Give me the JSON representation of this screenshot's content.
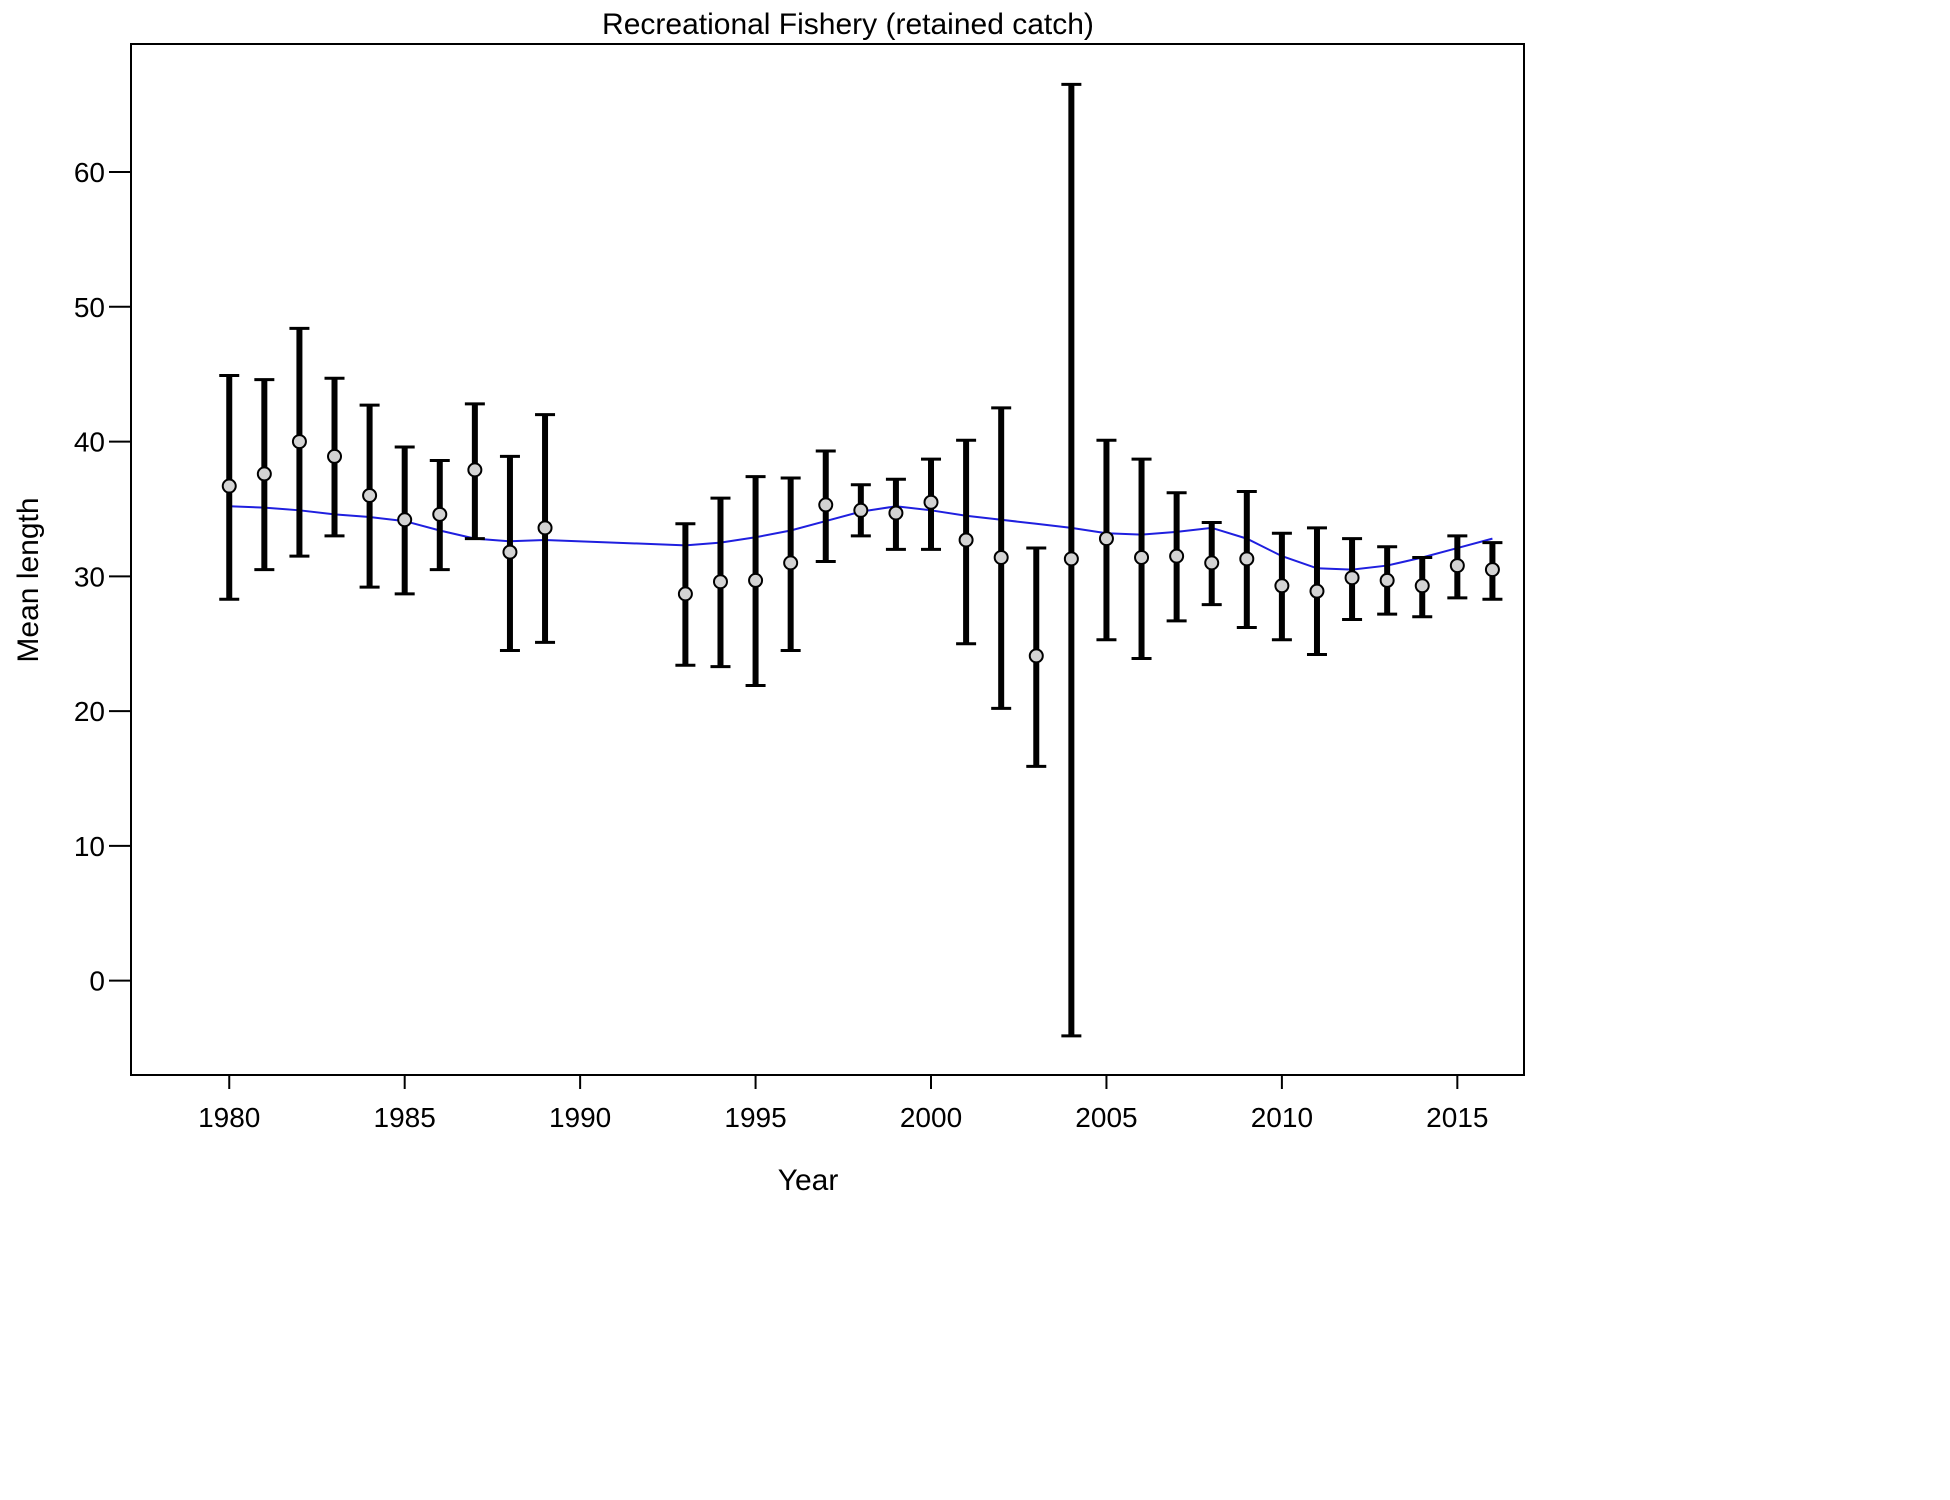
{
  "chart_data": {
    "type": "scatter",
    "title": "Recreational Fishery (retained catch)",
    "xlabel": "Year",
    "ylabel": "Mean length",
    "xlim": [
      1977.2,
      2016.9
    ],
    "ylim": [
      -7.0,
      69.5
    ],
    "x_ticks": [
      1980,
      1985,
      1990,
      1995,
      2000,
      2005,
      2010,
      2015
    ],
    "y_ticks": [
      0,
      10,
      20,
      30,
      40,
      50,
      60
    ],
    "grid": false,
    "legend": "none",
    "series": [
      {
        "kind": "points_with_error_bars",
        "x": [
          1980,
          1981,
          1982,
          1983,
          1984,
          1985,
          1986,
          1987,
          1988,
          1989,
          1993,
          1994,
          1995,
          1996,
          1997,
          1998,
          1999,
          2000,
          2001,
          2002,
          2003,
          2004,
          2005,
          2006,
          2007,
          2008,
          2009,
          2010,
          2011,
          2012,
          2013,
          2014,
          2015,
          2016
        ],
        "y": [
          36.7,
          37.6,
          40.0,
          38.9,
          36.0,
          34.2,
          34.6,
          37.9,
          31.8,
          33.6,
          28.7,
          29.6,
          29.7,
          31.0,
          35.3,
          34.9,
          34.7,
          35.5,
          32.7,
          31.4,
          24.1,
          31.3,
          32.8,
          31.4,
          31.5,
          31.0,
          31.3,
          29.3,
          28.9,
          29.9,
          29.7,
          29.3,
          30.8,
          30.5
        ],
        "lower": [
          28.3,
          30.5,
          31.5,
          33.0,
          29.2,
          28.7,
          30.5,
          32.8,
          24.5,
          25.1,
          23.4,
          23.3,
          21.9,
          24.5,
          31.1,
          33.0,
          32.0,
          32.0,
          25.0,
          20.2,
          15.9,
          -4.1,
          25.3,
          23.9,
          26.7,
          27.9,
          26.2,
          25.3,
          24.2,
          26.8,
          27.2,
          27.0,
          28.4,
          28.3
        ],
        "upper": [
          44.9,
          44.6,
          48.4,
          44.7,
          42.7,
          39.6,
          38.6,
          42.8,
          38.9,
          42.0,
          33.9,
          35.8,
          37.4,
          37.3,
          39.3,
          36.8,
          37.2,
          38.7,
          40.1,
          42.5,
          32.1,
          66.5,
          40.1,
          38.7,
          36.2,
          34.0,
          36.3,
          33.2,
          33.6,
          32.8,
          32.2,
          31.4,
          33.0,
          32.5
        ],
        "marker_color": "#d3d3d3",
        "bar_color": "#000000"
      },
      {
        "kind": "line",
        "x": [
          1980,
          1981,
          1982,
          1983,
          1984,
          1985,
          1986,
          1987,
          1988,
          1989,
          1993,
          1994,
          1995,
          1996,
          1997,
          1998,
          1999,
          2000,
          2001,
          2002,
          2003,
          2004,
          2005,
          2006,
          2007,
          2008,
          2009,
          2010,
          2011,
          2012,
          2013,
          2014,
          2015,
          2016
        ],
        "y": [
          35.2,
          35.1,
          34.9,
          34.6,
          34.4,
          34.1,
          33.4,
          32.8,
          32.6,
          32.7,
          32.3,
          32.5,
          32.9,
          33.4,
          34.1,
          34.8,
          35.2,
          34.9,
          34.5,
          34.2,
          33.9,
          33.6,
          33.2,
          33.1,
          33.3,
          33.6,
          32.8,
          31.5,
          30.6,
          30.5,
          30.8,
          31.4,
          32.1,
          32.8
        ],
        "color": "#1f1fdf"
      }
    ]
  }
}
